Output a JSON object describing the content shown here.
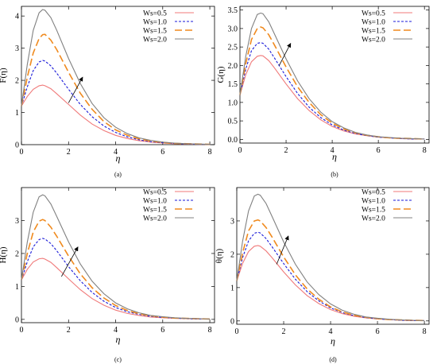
{
  "chart_data": [
    {
      "type": "line",
      "panel_label": "(a)",
      "ylabel": "F(η)",
      "xlabel": "η",
      "xlim": [
        0,
        8.2
      ],
      "ylim": [
        0,
        4.3
      ],
      "xticks": [
        "0",
        "2",
        "4",
        "6",
        "8"
      ],
      "xtick_values": [
        0,
        2,
        4,
        6,
        8
      ],
      "yticks": [
        "0",
        "1",
        "2",
        "3",
        "4"
      ],
      "ytick_values": [
        0,
        1,
        2,
        3,
        4
      ],
      "legend_position": "top-right",
      "arrow": {
        "from": [
          2.0,
          1.3
        ],
        "to": [
          2.6,
          2.1
        ]
      },
      "series": [
        {
          "name": "Ws=0.5",
          "color": "#f07a7a",
          "dash": "solid",
          "x": [
            0,
            0.25,
            0.5,
            0.75,
            0.9,
            1.0,
            1.25,
            1.5,
            2,
            2.5,
            3,
            3.5,
            4,
            4.5,
            5,
            5.5,
            6,
            6.5,
            7,
            7.5,
            8
          ],
          "y": [
            1.2,
            1.5,
            1.72,
            1.83,
            1.85,
            1.83,
            1.74,
            1.58,
            1.25,
            0.92,
            0.64,
            0.44,
            0.29,
            0.19,
            0.12,
            0.08,
            0.05,
            0.03,
            0.02,
            0.01,
            0.01
          ]
        },
        {
          "name": "Ws=1.0",
          "color": "#1a1ad8",
          "dash": "dotted",
          "x": [
            0,
            0.25,
            0.5,
            0.75,
            0.9,
            1.0,
            1.25,
            1.5,
            2,
            2.5,
            3,
            3.5,
            4,
            4.5,
            5,
            5.5,
            6,
            6.5,
            7,
            7.5,
            8
          ],
          "y": [
            1.2,
            1.8,
            2.3,
            2.57,
            2.62,
            2.6,
            2.45,
            2.22,
            1.72,
            1.25,
            0.87,
            0.58,
            0.38,
            0.24,
            0.15,
            0.09,
            0.06,
            0.04,
            0.02,
            0.01,
            0.01
          ]
        },
        {
          "name": "Ws=1.5",
          "color": "#f08a1e",
          "dash": "dashed",
          "x": [
            0,
            0.25,
            0.5,
            0.75,
            0.9,
            1.0,
            1.25,
            1.5,
            2,
            2.5,
            3,
            3.5,
            4,
            4.5,
            5,
            5.5,
            6,
            6.5,
            7,
            7.5,
            8
          ],
          "y": [
            1.2,
            2.1,
            2.85,
            3.3,
            3.42,
            3.43,
            3.25,
            2.95,
            2.25,
            1.6,
            1.1,
            0.72,
            0.46,
            0.29,
            0.18,
            0.11,
            0.07,
            0.04,
            0.03,
            0.02,
            0.01
          ]
        },
        {
          "name": "Ws=2.0",
          "color": "#808080",
          "dash": "solid",
          "x": [
            0,
            0.25,
            0.5,
            0.75,
            0.9,
            1.0,
            1.25,
            1.5,
            2,
            2.5,
            3,
            3.5,
            4,
            4.5,
            5,
            5.5,
            6,
            6.5,
            7,
            7.5,
            8
          ],
          "y": [
            1.2,
            2.5,
            3.55,
            4.1,
            4.2,
            4.18,
            3.95,
            3.55,
            2.68,
            1.9,
            1.28,
            0.84,
            0.54,
            0.34,
            0.21,
            0.13,
            0.08,
            0.05,
            0.03,
            0.02,
            0.01
          ]
        }
      ]
    },
    {
      "type": "line",
      "panel_label": "(b)",
      "ylabel": "G(η)",
      "xlabel": "η",
      "xlim": [
        0,
        8.2
      ],
      "ylim": [
        -0.1,
        3.6
      ],
      "xticks": [
        "0",
        "2",
        "4",
        "6",
        "8"
      ],
      "xtick_values": [
        0,
        2,
        4,
        6,
        8
      ],
      "yticks": [
        "0.0",
        "0.5",
        "1.0",
        "1.5",
        "2.0",
        "2.5",
        "3.0",
        "3.5"
      ],
      "ytick_values": [
        0,
        0.5,
        1,
        1.5,
        2,
        2.5,
        3,
        3.5
      ],
      "legend_position": "top-right",
      "arrow": {
        "from": [
          1.7,
          2.0
        ],
        "to": [
          2.2,
          2.6
        ]
      },
      "series": [
        {
          "name": "Ws=0.5",
          "color": "#f07a7a",
          "dash": "solid",
          "x": [
            0,
            0.25,
            0.5,
            0.75,
            0.9,
            1.0,
            1.25,
            1.5,
            2,
            2.5,
            3,
            3.5,
            4,
            4.5,
            5,
            5.5,
            6,
            6.5,
            7,
            7.5,
            8
          ],
          "y": [
            1.2,
            1.75,
            2.1,
            2.25,
            2.27,
            2.26,
            2.13,
            1.93,
            1.5,
            1.1,
            0.78,
            0.53,
            0.35,
            0.23,
            0.15,
            0.1,
            0.06,
            0.04,
            0.02,
            0.01,
            0.01
          ]
        },
        {
          "name": "Ws=1.0",
          "color": "#1a1ad8",
          "dash": "dotted",
          "x": [
            0,
            0.25,
            0.5,
            0.75,
            0.9,
            1.0,
            1.25,
            1.5,
            2,
            2.5,
            3,
            3.5,
            4,
            4.5,
            5,
            5.5,
            6,
            6.5,
            7,
            7.5,
            8
          ],
          "y": [
            1.2,
            1.9,
            2.4,
            2.6,
            2.62,
            2.6,
            2.44,
            2.2,
            1.7,
            1.24,
            0.87,
            0.59,
            0.39,
            0.25,
            0.16,
            0.1,
            0.06,
            0.04,
            0.02,
            0.01,
            0.01
          ]
        },
        {
          "name": "Ws=1.5",
          "color": "#f08a1e",
          "dash": "dashed",
          "x": [
            0,
            0.25,
            0.5,
            0.75,
            0.9,
            1.0,
            1.25,
            1.5,
            2,
            2.5,
            3,
            3.5,
            4,
            4.5,
            5,
            5.5,
            6,
            6.5,
            7,
            7.5,
            8
          ],
          "y": [
            1.2,
            2.05,
            2.7,
            3.0,
            3.04,
            3.02,
            2.83,
            2.55,
            1.96,
            1.42,
            1.0,
            0.67,
            0.44,
            0.28,
            0.18,
            0.11,
            0.07,
            0.04,
            0.03,
            0.02,
            0.01
          ]
        },
        {
          "name": "Ws=2.0",
          "color": "#808080",
          "dash": "solid",
          "x": [
            0,
            0.25,
            0.5,
            0.75,
            0.9,
            1.0,
            1.25,
            1.5,
            2,
            2.5,
            3,
            3.5,
            4,
            4.5,
            5,
            5.5,
            6,
            6.5,
            7,
            7.5,
            8
          ],
          "y": [
            1.2,
            2.25,
            3.0,
            3.38,
            3.42,
            3.4,
            3.18,
            2.85,
            2.18,
            1.58,
            1.1,
            0.74,
            0.48,
            0.31,
            0.19,
            0.12,
            0.07,
            0.05,
            0.03,
            0.02,
            0.01
          ]
        }
      ]
    },
    {
      "type": "line",
      "panel_label": "(c)",
      "ylabel": "H(η)",
      "xlabel": "η",
      "xlim": [
        0,
        8.2
      ],
      "ylim": [
        -0.1,
        4.0
      ],
      "xticks": [
        "0",
        "2",
        "4",
        "6",
        "8"
      ],
      "xtick_values": [
        0,
        2,
        4,
        6,
        8
      ],
      "yticks": [
        "0",
        "1",
        "2",
        "3"
      ],
      "ytick_values": [
        0,
        1,
        2,
        3
      ],
      "legend_position": "top-right",
      "arrow": {
        "from": [
          1.7,
          1.3
        ],
        "to": [
          2.4,
          2.2
        ]
      },
      "series": [
        {
          "name": "Ws=0.5",
          "color": "#f07a7a",
          "dash": "solid",
          "x": [
            0,
            0.25,
            0.5,
            0.75,
            0.9,
            1.0,
            1.25,
            1.5,
            2,
            2.5,
            3,
            3.5,
            4,
            4.5,
            5,
            5.5,
            6,
            6.5,
            7,
            7.5,
            8
          ],
          "y": [
            1.2,
            1.52,
            1.74,
            1.84,
            1.85,
            1.83,
            1.73,
            1.57,
            1.23,
            0.9,
            0.63,
            0.43,
            0.28,
            0.18,
            0.12,
            0.07,
            0.05,
            0.03,
            0.02,
            0.01,
            0.01
          ]
        },
        {
          "name": "Ws=1.0",
          "color": "#1a1ad8",
          "dash": "dotted",
          "x": [
            0,
            0.25,
            0.5,
            0.75,
            0.9,
            1.0,
            1.25,
            1.5,
            2,
            2.5,
            3,
            3.5,
            4,
            4.5,
            5,
            5.5,
            6,
            6.5,
            7,
            7.5,
            8
          ],
          "y": [
            1.2,
            1.75,
            2.2,
            2.42,
            2.46,
            2.44,
            2.3,
            2.08,
            1.6,
            1.17,
            0.82,
            0.55,
            0.36,
            0.23,
            0.15,
            0.09,
            0.06,
            0.04,
            0.02,
            0.01,
            0.01
          ]
        },
        {
          "name": "Ws=1.5",
          "color": "#f08a1e",
          "dash": "dashed",
          "x": [
            0,
            0.25,
            0.5,
            0.75,
            0.9,
            1.0,
            1.25,
            1.5,
            2,
            2.5,
            3,
            3.5,
            4,
            4.5,
            5,
            5.5,
            6,
            6.5,
            7,
            7.5,
            8
          ],
          "y": [
            1.2,
            2.0,
            2.65,
            2.98,
            3.03,
            3.0,
            2.8,
            2.52,
            1.92,
            1.38,
            0.96,
            0.65,
            0.42,
            0.27,
            0.17,
            0.11,
            0.07,
            0.04,
            0.03,
            0.02,
            0.01
          ]
        },
        {
          "name": "Ws=2.0",
          "color": "#808080",
          "dash": "solid",
          "x": [
            0,
            0.25,
            0.5,
            0.75,
            0.9,
            1.0,
            1.25,
            1.5,
            2,
            2.5,
            3,
            3.5,
            4,
            4.5,
            5,
            5.5,
            6,
            6.5,
            7,
            7.5,
            8
          ],
          "y": [
            1.2,
            2.35,
            3.25,
            3.72,
            3.78,
            3.75,
            3.5,
            3.12,
            2.35,
            1.68,
            1.16,
            0.78,
            0.5,
            0.32,
            0.2,
            0.12,
            0.08,
            0.05,
            0.03,
            0.02,
            0.01
          ]
        }
      ]
    },
    {
      "type": "line",
      "panel_label": "(d)",
      "ylabel": "θ(η)",
      "xlabel": "η",
      "xlim": [
        0,
        8.2
      ],
      "ylim": [
        -0.1,
        4.0
      ],
      "xticks": [
        "0",
        "2",
        "4",
        "6",
        "8"
      ],
      "xtick_values": [
        0,
        2,
        4,
        6,
        8
      ],
      "yticks": [
        "0",
        "1",
        "2",
        "3"
      ],
      "ytick_values": [
        0,
        1,
        2,
        3
      ],
      "legend_position": "top-right",
      "arrow": {
        "from": [
          1.7,
          1.7
        ],
        "to": [
          2.2,
          2.55
        ]
      },
      "series": [
        {
          "name": "Ws=0.5",
          "color": "#f07a7a",
          "dash": "solid",
          "x": [
            0,
            0.25,
            0.5,
            0.75,
            0.9,
            1.0,
            1.25,
            1.5,
            2,
            2.5,
            3,
            3.5,
            4,
            4.5,
            5,
            5.5,
            6,
            6.5,
            7,
            7.5,
            8
          ],
          "y": [
            1.2,
            1.73,
            2.08,
            2.24,
            2.26,
            2.24,
            2.1,
            1.9,
            1.47,
            1.08,
            0.76,
            0.52,
            0.34,
            0.22,
            0.14,
            0.09,
            0.06,
            0.04,
            0.02,
            0.01,
            0.01
          ]
        },
        {
          "name": "Ws=1.0",
          "color": "#1a1ad8",
          "dash": "dotted",
          "x": [
            0,
            0.25,
            0.5,
            0.75,
            0.9,
            1.0,
            1.25,
            1.5,
            2,
            2.5,
            3,
            3.5,
            4,
            4.5,
            5,
            5.5,
            6,
            6.5,
            7,
            7.5,
            8
          ],
          "y": [
            1.2,
            1.9,
            2.4,
            2.63,
            2.66,
            2.64,
            2.47,
            2.23,
            1.72,
            1.25,
            0.88,
            0.6,
            0.39,
            0.25,
            0.16,
            0.1,
            0.06,
            0.04,
            0.02,
            0.01,
            0.01
          ]
        },
        {
          "name": "Ws=1.5",
          "color": "#f08a1e",
          "dash": "dashed",
          "x": [
            0,
            0.25,
            0.5,
            0.75,
            0.9,
            1.0,
            1.25,
            1.5,
            2,
            2.5,
            3,
            3.5,
            4,
            4.5,
            5,
            5.5,
            6,
            6.5,
            7,
            7.5,
            8
          ],
          "y": [
            1.2,
            2.05,
            2.7,
            3.0,
            3.03,
            3.0,
            2.8,
            2.52,
            1.92,
            1.38,
            0.96,
            0.65,
            0.42,
            0.27,
            0.17,
            0.11,
            0.07,
            0.04,
            0.03,
            0.02,
            0.01
          ]
        },
        {
          "name": "Ws=2.0",
          "color": "#808080",
          "dash": "solid",
          "x": [
            0,
            0.25,
            0.5,
            0.75,
            0.9,
            1.0,
            1.25,
            1.5,
            2,
            2.5,
            3,
            3.5,
            4,
            4.5,
            5,
            5.5,
            6,
            6.5,
            7,
            7.5,
            8
          ],
          "y": [
            1.2,
            2.4,
            3.3,
            3.75,
            3.8,
            3.77,
            3.52,
            3.14,
            2.37,
            1.7,
            1.17,
            0.79,
            0.51,
            0.32,
            0.2,
            0.12,
            0.08,
            0.05,
            0.03,
            0.02,
            0.01
          ]
        }
      ]
    }
  ]
}
